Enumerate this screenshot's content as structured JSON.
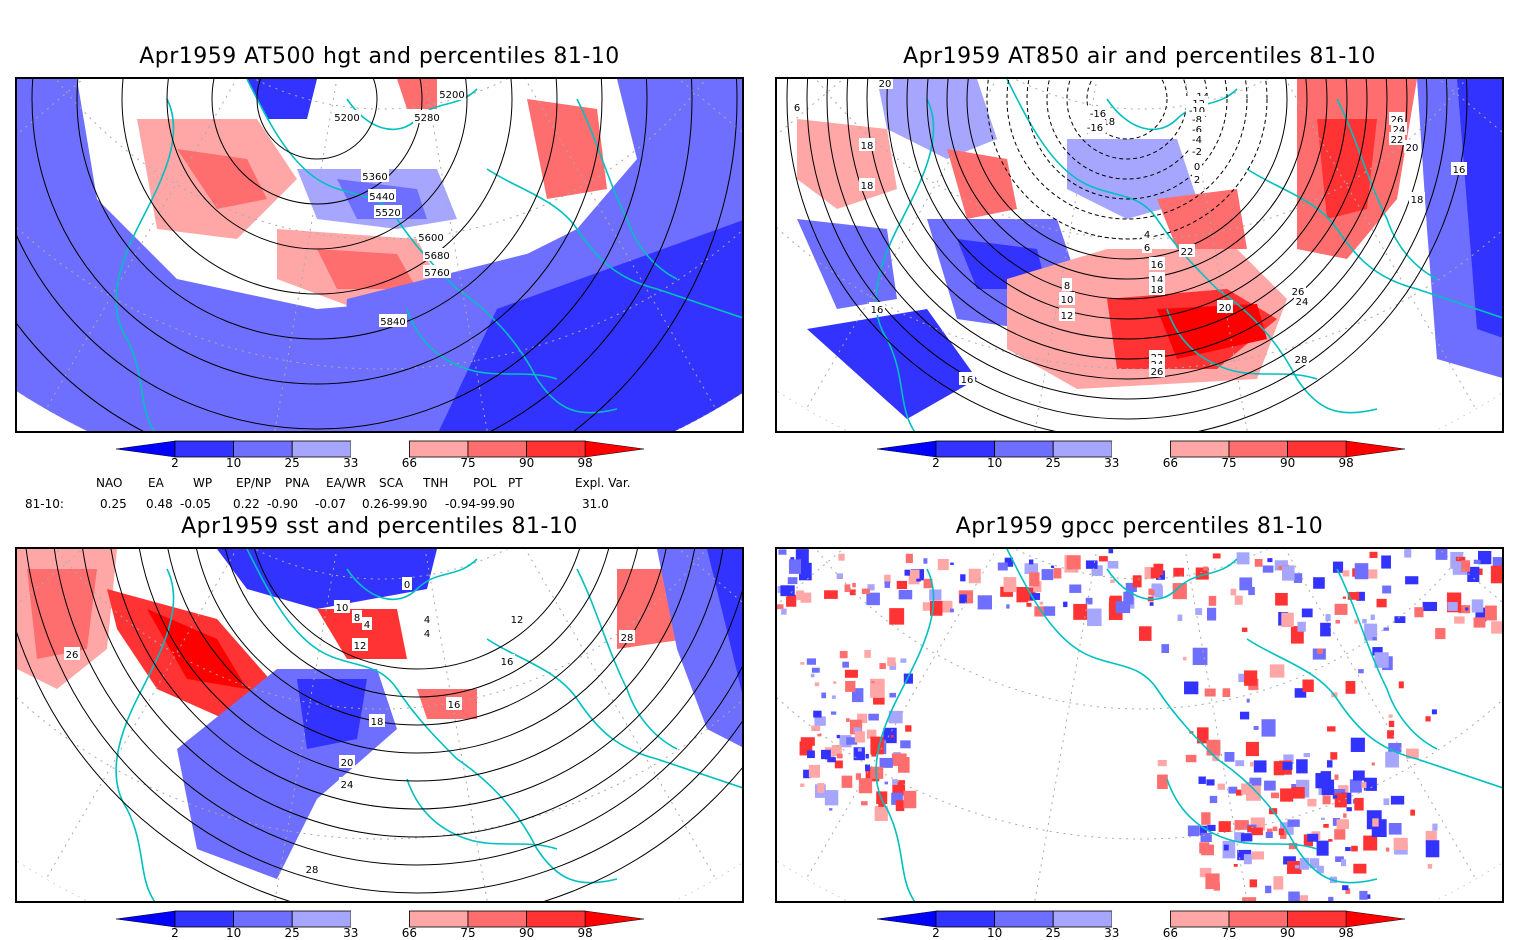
{
  "panels": [
    {
      "id": "hgt500",
      "title": "Apr1959 AT500 hgt and percentiles 81-10",
      "contour_labels": [
        "5200",
        "5200",
        "5280",
        "5360",
        "5440",
        "5520",
        "5600",
        "5680",
        "5760",
        "5840"
      ]
    },
    {
      "id": "air850",
      "title": "Apr1959 AT850 air and percentiles 81-10",
      "contour_labels": [
        "20",
        "6",
        "18",
        "18",
        "16",
        "16",
        "-18",
        "-16",
        "-16",
        "-14",
        "-12",
        "-10",
        "-8",
        "-6",
        "-4",
        "-2",
        "0",
        "2",
        "4",
        "6",
        "8",
        "10",
        "12",
        "14",
        "16",
        "18",
        "20",
        "22",
        "24",
        "26",
        "28",
        "26",
        "24",
        "22",
        "20",
        "22",
        "24",
        "26",
        "18",
        "16"
      ]
    },
    {
      "id": "sst",
      "title": "Apr1959 sst and percentiles 81-10",
      "contour_labels": [
        "0",
        "10",
        "8",
        "4",
        "4",
        "4",
        "12",
        "16",
        "16",
        "18",
        "12",
        "28",
        "26",
        "20",
        "24",
        "28"
      ]
    },
    {
      "id": "gpcc",
      "title": "Apr1959 gpcc percentiles 81-10",
      "contour_labels": []
    }
  ],
  "colorbar": {
    "labels": [
      "2",
      "10",
      "25",
      "33",
      "66",
      "75",
      "90",
      "98"
    ],
    "colors": [
      "#0000ff",
      "#3333ff",
      "#6e6eff",
      "#a6a6ff",
      "#ffffff",
      "#ffa6a6",
      "#ff6e6e",
      "#ff3333",
      "#ff0000"
    ]
  },
  "indices": {
    "row_label": "81-10:",
    "names": [
      "NAO",
      "EA",
      "WP",
      "EP/NP",
      "PNA",
      "EA/WR",
      "SCA",
      "TNH",
      "POL",
      "PT",
      "Expl. Var."
    ],
    "values_text": [
      "0.25",
      "0.48",
      "-0.05",
      "0.22",
      "-0.90",
      "-0.07",
      "0.26-99.90",
      "-0.94-99.90",
      "31.0"
    ]
  },
  "colors": {
    "coastline": "#00c0c0",
    "contour": "#000000",
    "grid": "#aaaaaa"
  }
}
